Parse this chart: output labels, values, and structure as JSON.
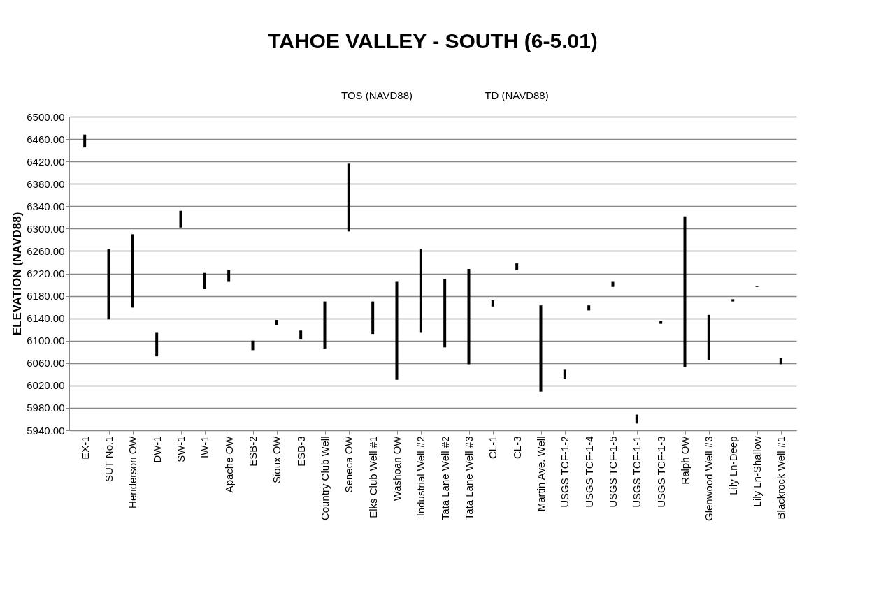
{
  "chart_data": {
    "type": "bar",
    "title": "TAHOE VALLEY - SOUTH (6-5.01)",
    "ylabel": "ELEVATION (NAVD88)",
    "annotations": [
      "TOS (NAVD88)",
      "TD (NAVD88)"
    ],
    "categories": [
      "EX-1",
      "SUT No.1",
      "Henderson OW",
      "DW-1",
      "SW-1",
      "IW-1",
      "Apache OW",
      "ESB-2",
      "Sioux OW",
      "ESB-3",
      "Country Club Well",
      "Seneca OW",
      "Elks Club Well #1",
      "Washoan OW",
      "Industrial Well #2",
      "Tata Lane Well #2",
      "Tata Lane Well #3",
      "CL-1",
      "CL-3",
      "Martin Ave. Well",
      "USGS TCF-1-2",
      "USGS TCF-1-4",
      "USGS TCF-1-5",
      "USGS TCF-1-1",
      "USGS TCF-1-3",
      "Ralph OW",
      "Glenwood Well #3",
      "Lily Ln-Deep",
      "Lily Ln-Shallow",
      "Blackrock Well #1"
    ],
    "base": [
      6445,
      6138,
      6159,
      6072,
      6302,
      6192,
      6205,
      6083,
      6128,
      6102,
      6086,
      6295,
      6112,
      6030,
      6114,
      6088,
      6058,
      6161,
      6226,
      6009,
      6031,
      6154,
      6196,
      5952,
      6130,
      6053,
      6065,
      6170,
      6196,
      6058
    ],
    "values": [
      23,
      125,
      131,
      42,
      30,
      29,
      21,
      17,
      9,
      16,
      84,
      121,
      58,
      175,
      150,
      122,
      170,
      11,
      12,
      154,
      17,
      9,
      9,
      16,
      5,
      269,
      81,
      4,
      2,
      11
    ],
    "color": "#000000",
    "ylim": [
      5940,
      6500
    ],
    "yticks": [
      {
        "value": 5940,
        "label": "5940.00"
      },
      {
        "value": 5980,
        "label": "5980.00"
      },
      {
        "value": 6020,
        "label": "6020.00"
      },
      {
        "value": 6060,
        "label": "6060.00"
      },
      {
        "value": 6100,
        "label": "6100.00"
      },
      {
        "value": 6140,
        "label": "6140.00"
      },
      {
        "value": 6180,
        "label": "6180.00"
      },
      {
        "value": 6220,
        "label": "6220.00"
      },
      {
        "value": 6260,
        "label": "6260.00"
      },
      {
        "value": 6300,
        "label": "6300.00"
      },
      {
        "value": 6340,
        "label": "6340.00"
      },
      {
        "value": 6380,
        "label": "6380.00"
      },
      {
        "value": 6420,
        "label": "6420.00"
      },
      {
        "value": 6460,
        "label": "6460.00"
      },
      {
        "value": 6500,
        "label": "6500.00"
      }
    ],
    "grid": "y"
  }
}
